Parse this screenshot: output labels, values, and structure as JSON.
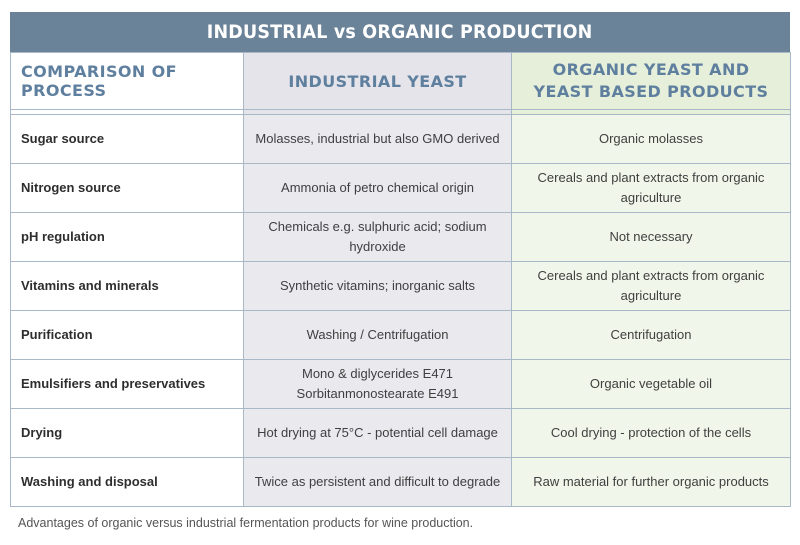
{
  "title": "INDUSTRIAL vs ORGANIC PRODUCTION",
  "headers": {
    "process": "COMPARISON OF PROCESS",
    "industrial": "INDUSTRIAL YEAST",
    "organic": "ORGANIC YEAST AND YEAST BASED PRODUCTS"
  },
  "rows": [
    {
      "label": "Sugar source",
      "industrial": "Molasses, industrial but also GMO derived",
      "organic": "Organic molasses"
    },
    {
      "label": "Nitrogen source",
      "industrial": "Ammonia of petro chemical origin",
      "organic": "Cereals and plant extracts from organic agriculture"
    },
    {
      "label": "pH regulation",
      "industrial": "Chemicals e.g. sulphuric acid; sodium hydroxide",
      "organic": "Not necessary"
    },
    {
      "label": "Vitamins and minerals",
      "industrial": "Synthetic vitamins; inorganic salts",
      "organic": "Cereals and plant extracts from organic agriculture"
    },
    {
      "label": "Purification",
      "industrial": "Washing / Centrifugation",
      "organic": "Centrifugation"
    },
    {
      "label": "Emulsifiers and preservatives",
      "industrial": "Mono & diglycerides E471 Sorbitanmonostearate E491",
      "organic": "Organic vegetable oil"
    },
    {
      "label": "Drying",
      "industrial": "Hot drying at 75°C - potential cell damage",
      "organic": "Cool drying - protection of the cells"
    },
    {
      "label": "Washing and disposal",
      "industrial": "Twice as persistent and difficult to degrade",
      "organic": "Raw material for further organic products"
    }
  ],
  "caption": "Advantages of organic versus industrial fermentation products for wine production.",
  "colors": {
    "title_bar": "#6b8399",
    "header_text": "#5f7f9f",
    "industrial_bg": "#e4e4ea",
    "organic_bg": "#e6efd9",
    "border": "#a9b8c6"
  }
}
